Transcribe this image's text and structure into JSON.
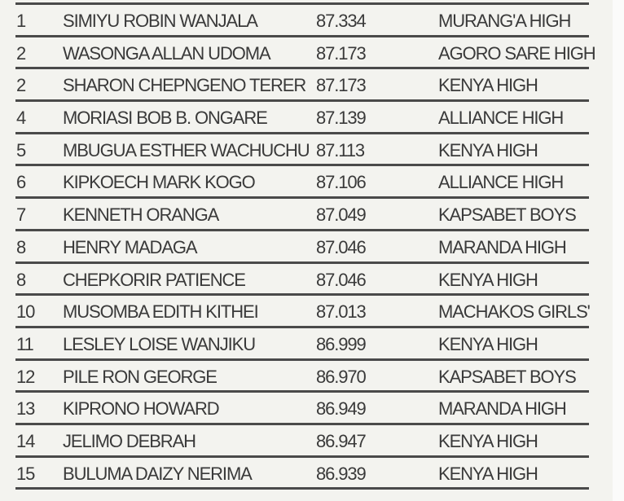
{
  "rows": [
    {
      "rank": "1",
      "name": "SIMIYU ROBIN WANJALA",
      "score": "87.334",
      "school": "MURANG'A HIGH"
    },
    {
      "rank": "2",
      "name": "WASONGA ALLAN UDOMA",
      "score": "87.173",
      "school": "AGORO SARE HIGH"
    },
    {
      "rank": "2",
      "name": "SHARON CHEPNGENO TERER",
      "score": "87.173",
      "school": "KENYA HIGH"
    },
    {
      "rank": "4",
      "name": "MORIASI BOB B. ONGARE",
      "score": "87.139",
      "school": "ALLIANCE HIGH"
    },
    {
      "rank": "5",
      "name": "MBUGUA ESTHER WACHUCHU",
      "score": "87.113",
      "school": "KENYA HIGH"
    },
    {
      "rank": "6",
      "name": "KIPKOECH MARK KOGO",
      "score": "87.106",
      "school": "ALLIANCE HIGH"
    },
    {
      "rank": "7",
      "name": "KENNETH ORANGA",
      "score": "87.049",
      "school": "KAPSABET BOYS"
    },
    {
      "rank": "8",
      "name": "HENRY MADAGA",
      "score": "87.046",
      "school": "MARANDA HIGH"
    },
    {
      "rank": "8",
      "name": "CHEPKORIR PATIENCE",
      "score": "87.046",
      "school": "KENYA HIGH"
    },
    {
      "rank": "10",
      "name": "MUSOMBA EDITH KITHEI",
      "score": "87.013",
      "school": "MACHAKOS GIRLS'"
    },
    {
      "rank": "11",
      "name": "LESLEY LOISE WANJIKU",
      "score": "86.999",
      "school": "KENYA HIGH"
    },
    {
      "rank": "12",
      "name": "PILE RON GEORGE",
      "score": "86.970",
      "school": "KAPSABET BOYS"
    },
    {
      "rank": "13",
      "name": "KIPRONO HOWARD",
      "score": "86.949",
      "school": "MARANDA HIGH"
    },
    {
      "rank": "14",
      "name": "JELIMO DEBRAH",
      "score": "86.947",
      "school": "KENYA HIGH"
    },
    {
      "rank": "15",
      "name": "BULUMA DAIZY NERIMA",
      "score": "86.939",
      "school": "KENYA HIGH"
    }
  ]
}
